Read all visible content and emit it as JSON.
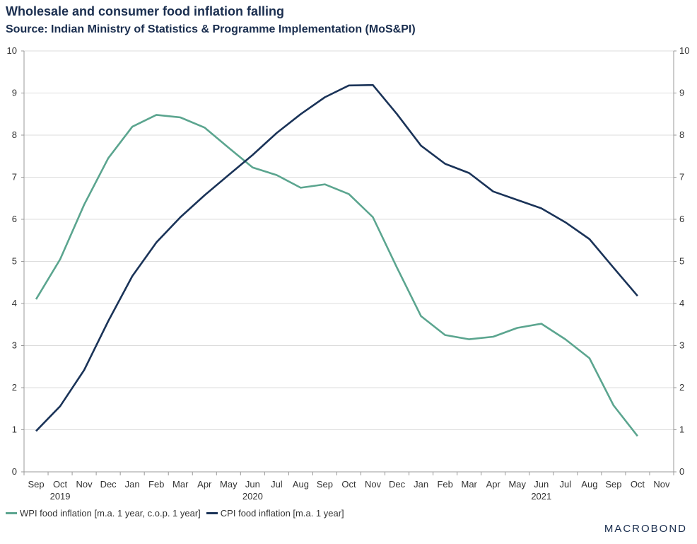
{
  "header": {
    "title": "Wholesale and consumer food inflation falling",
    "subtitle": "Source: Indian Ministry of Statistics & Programme Implementation (MoS&PI)"
  },
  "brand": {
    "text": "MACROBOND"
  },
  "chart_data": {
    "type": "line",
    "title": "Wholesale and consumer food inflation falling",
    "subtitle": "Source: Indian Ministry of Statistics & Programme Implementation (MoS&PI)",
    "x": [
      "2019-09",
      "2019-10",
      "2019-11",
      "2019-12",
      "2020-01",
      "2020-02",
      "2020-03",
      "2020-04",
      "2020-05",
      "2020-06",
      "2020-07",
      "2020-08",
      "2020-09",
      "2020-10",
      "2020-11",
      "2020-12",
      "2021-01",
      "2021-02",
      "2021-03",
      "2021-04",
      "2021-05",
      "2021-06",
      "2021-07",
      "2021-08",
      "2021-09",
      "2021-10",
      "2021-11"
    ],
    "x_tick_labels": [
      "Sep",
      "Oct",
      "Nov",
      "Dec",
      "Jan",
      "Feb",
      "Mar",
      "Apr",
      "May",
      "Jun",
      "Jul",
      "Aug",
      "Sep",
      "Oct",
      "Nov",
      "Dec",
      "Jan",
      "Feb",
      "Mar",
      "Apr",
      "May",
      "Jun",
      "Jul",
      "Aug",
      "Sep",
      "Oct",
      "Nov"
    ],
    "year_labels": [
      {
        "label": "2019",
        "x": "2019-10"
      },
      {
        "label": "2020",
        "x": "2020-06"
      },
      {
        "label": "2021",
        "x": "2021-06"
      }
    ],
    "ylim": [
      0,
      10
    ],
    "y_ticks": [
      0,
      1,
      2,
      3,
      4,
      5,
      6,
      7,
      8,
      9,
      10
    ],
    "y_axis_both_sides": true,
    "grid": "horizontal",
    "legend_position": "bottom-left",
    "series": [
      {
        "name": "WPI food inflation [m.a. 1 year, c.o.p. 1 year]",
        "color": "#5ba58f",
        "values": [
          4.1,
          5.05,
          6.35,
          7.45,
          8.2,
          8.48,
          8.42,
          8.18,
          7.7,
          7.23,
          7.05,
          6.75,
          6.83,
          6.6,
          6.05,
          4.85,
          3.7,
          3.25,
          3.15,
          3.21,
          3.42,
          3.52,
          3.15,
          2.7,
          1.58,
          0.85,
          null
        ]
      },
      {
        "name": "CPI food inflation [m.a. 1 year]",
        "color": "#1a3358",
        "values": [
          0.97,
          1.56,
          2.42,
          3.58,
          4.65,
          5.45,
          6.05,
          6.57,
          7.05,
          7.53,
          8.05,
          8.5,
          8.9,
          9.18,
          9.19,
          8.5,
          7.75,
          7.32,
          7.1,
          6.66,
          6.46,
          6.26,
          5.93,
          5.53,
          4.85,
          4.18,
          null
        ]
      }
    ]
  }
}
